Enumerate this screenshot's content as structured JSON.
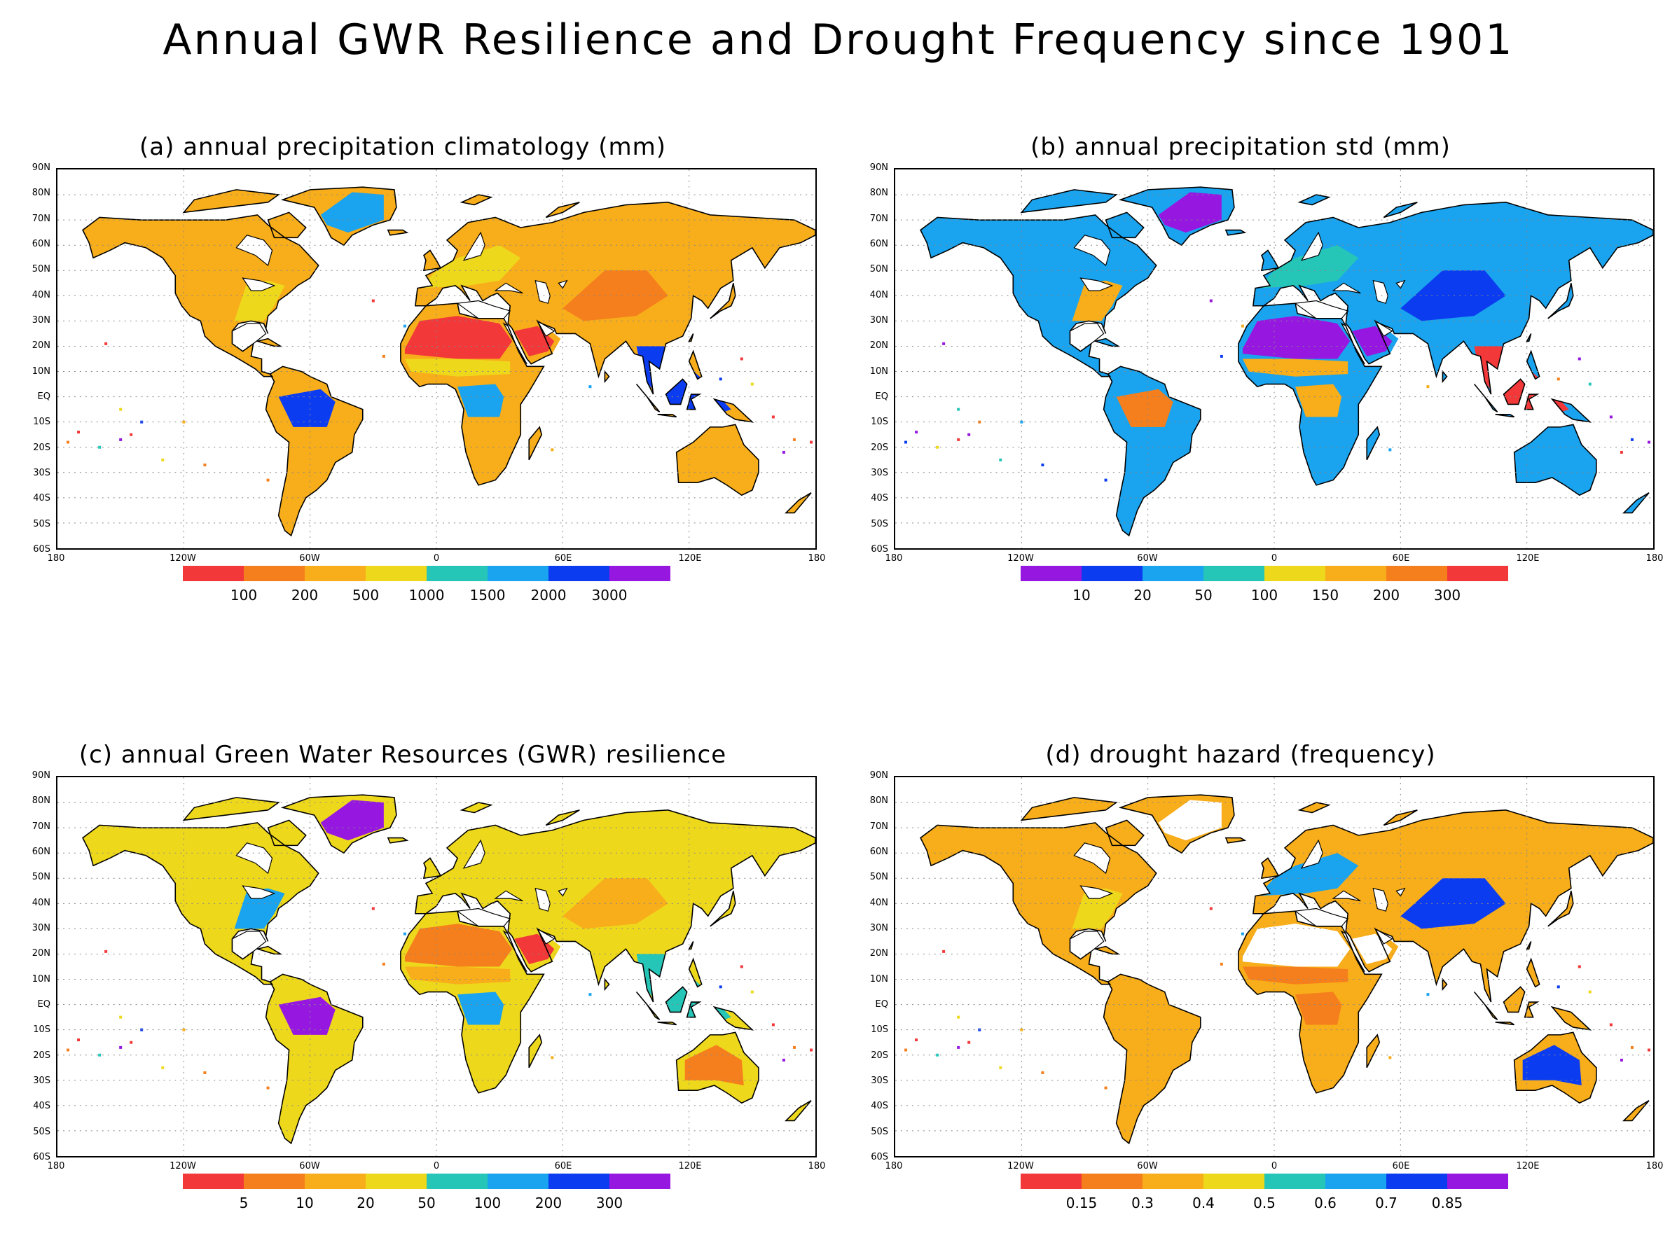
{
  "title": "Annual GWR Resilience and Drought Frequency since 1901",
  "axes": {
    "lat_labels": [
      "90N",
      "80N",
      "70N",
      "60N",
      "50N",
      "40N",
      "30N",
      "20N",
      "10N",
      "EQ",
      "10S",
      "20S",
      "30S",
      "40S",
      "50S",
      "60S"
    ],
    "lon_labels": [
      "180",
      "120W",
      "60W",
      "0",
      "60E",
      "120E",
      "180"
    ]
  },
  "panels": [
    {
      "title": "(a) annual precipitation climatology (mm)",
      "colorbar": {
        "colors": [
          "#f23838",
          "#f57f1c",
          "#f8ad1a",
          "#eed81c",
          "#25c6b8",
          "#1aa3ee",
          "#0c3cf0",
          "#9618e0"
        ],
        "labels": [
          "100",
          "200",
          "500",
          "1000",
          "1500",
          "2000",
          "3000"
        ]
      },
      "map_fill": "#f8ad1a",
      "regions": {
        "boreal": "#f8ad1a",
        "sahara": "#f23838",
        "arabia": "#f23838",
        "amazon": "#0c3cf0",
        "congo": "#1aa3ee",
        "se_asia": "#0c3cf0",
        "australia": "#f8ad1a",
        "east_us": "#eed81c",
        "europe": "#eed81c",
        "greenland": "#1aa3ee",
        "central_asia": "#f57f1c",
        "sahel": "#eed81c"
      }
    },
    {
      "title": "(b) annual precipitation std (mm)",
      "colorbar": {
        "colors": [
          "#9618e0",
          "#0c3cf0",
          "#1aa3ee",
          "#25c6b8",
          "#eed81c",
          "#f8ad1a",
          "#f57f1c",
          "#f23838"
        ],
        "labels": [
          "10",
          "20",
          "50",
          "100",
          "150",
          "200",
          "300"
        ]
      },
      "map_fill": "#1aa3ee",
      "regions": {
        "boreal": "#1aa3ee",
        "sahara": "#9618e0",
        "arabia": "#9618e0",
        "amazon": "#f57f1c",
        "congo": "#f8ad1a",
        "se_asia": "#f23838",
        "australia": "#1aa3ee",
        "east_us": "#f8ad1a",
        "europe": "#25c6b8",
        "greenland": "#9618e0",
        "central_asia": "#0c3cf0",
        "sahel": "#f8ad1a"
      }
    },
    {
      "title": "(c) annual Green Water Resources (GWR) resilience",
      "colorbar": {
        "colors": [
          "#f23838",
          "#f57f1c",
          "#f8ad1a",
          "#eed81c",
          "#25c6b8",
          "#1aa3ee",
          "#0c3cf0",
          "#9618e0"
        ],
        "labels": [
          "5",
          "10",
          "20",
          "50",
          "100",
          "200",
          "300"
        ]
      },
      "map_fill": "#eed81c",
      "regions": {
        "boreal": "#eed81c",
        "sahara": "#f57f1c",
        "arabia": "#f23838",
        "amazon": "#9618e0",
        "congo": "#1aa3ee",
        "se_asia": "#25c6b8",
        "australia": "#f57f1c",
        "east_us": "#1aa3ee",
        "europe": "#eed81c",
        "greenland": "#9618e0",
        "central_asia": "#f8ad1a",
        "sahel": "#f8ad1a"
      }
    },
    {
      "title": "(d) drought hazard (frequency)",
      "colorbar": {
        "colors": [
          "#f23838",
          "#f57f1c",
          "#f8ad1a",
          "#eed81c",
          "#25c6b8",
          "#1aa3ee",
          "#0c3cf0",
          "#9618e0"
        ],
        "labels": [
          "0.15",
          "0.3",
          "0.4",
          "0.5",
          "0.6",
          "0.7",
          "0.85"
        ]
      },
      "map_fill": "#f8ad1a",
      "regions": {
        "boreal": "#f8ad1a",
        "sahara": "#ffffff",
        "arabia": "#ffffff",
        "amazon": "#f8ad1a",
        "congo": "#f57f1c",
        "se_asia": "#f8ad1a",
        "australia": "#0c3cf0",
        "east_us": "#eed81c",
        "europe": "#1aa3ee",
        "greenland": "#ffffff",
        "central_asia": "#0c3cf0",
        "sahel": "#f57f1c"
      }
    }
  ]
}
